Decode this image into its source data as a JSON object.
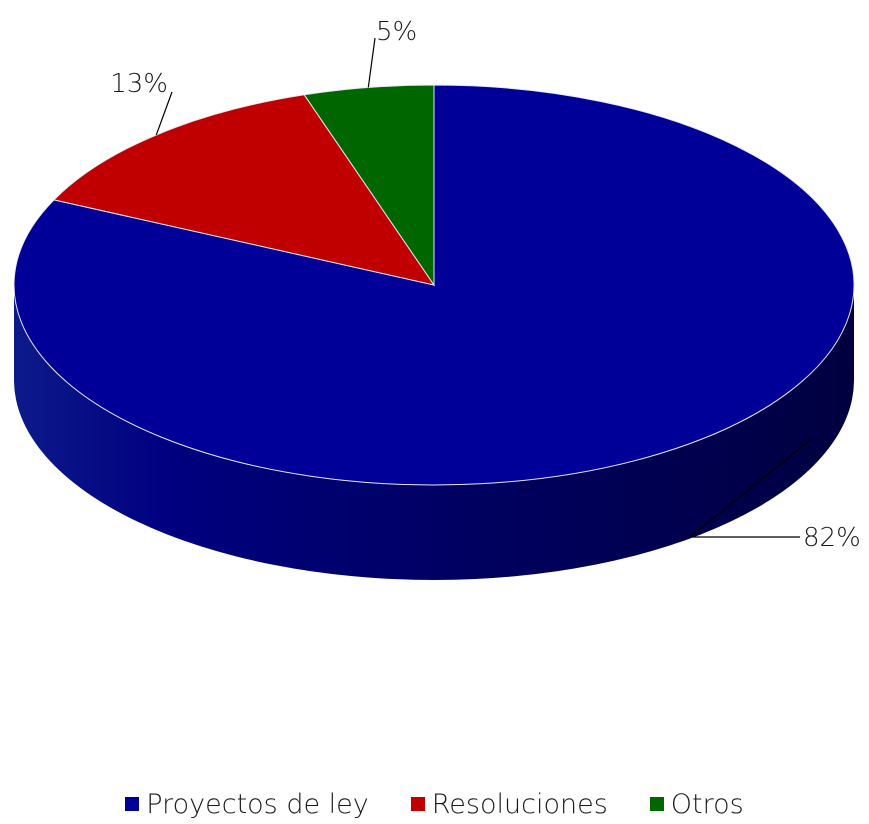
{
  "chart_data": {
    "type": "pie",
    "style": "3d",
    "categories": [
      "Proyectos de ley",
      "Resoluciones",
      "Otros"
    ],
    "values": [
      82,
      13,
      5
    ],
    "value_labels": [
      "82%",
      "13%",
      "5%"
    ],
    "colors": [
      "#000099",
      "#c00000",
      "#006600"
    ],
    "side_colors": [
      "#000066",
      "#800000",
      "#004400"
    ],
    "legend_position": "bottom",
    "title": ""
  }
}
